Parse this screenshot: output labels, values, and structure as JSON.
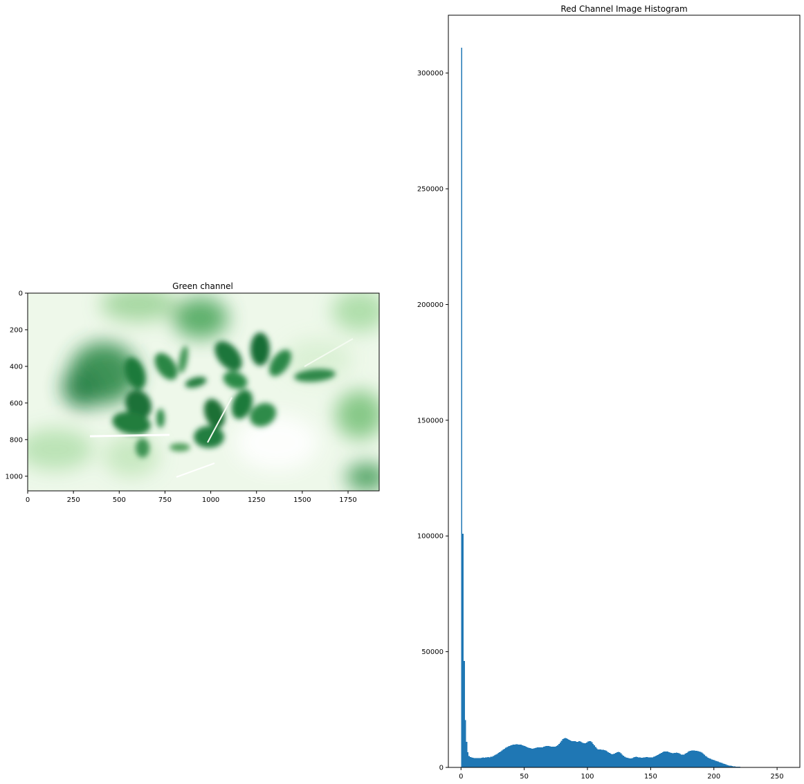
{
  "figure": {
    "image_panel": {
      "title": "Green channel",
      "colormap": "Greens",
      "x_ticks": [
        "0",
        "250",
        "500",
        "750",
        "1000",
        "1250",
        "1500",
        "1750"
      ],
      "y_ticks": [
        "0",
        "200",
        "400",
        "600",
        "800",
        "1000"
      ],
      "xlim": [
        0,
        1920
      ],
      "ylim": [
        1080,
        0
      ]
    }
  },
  "chart_data": {
    "type": "bar",
    "title": "Red Channel Image Histogram",
    "xlabel": "",
    "ylabel": "",
    "bar_color": "#1f77b4",
    "xlim": [
      -10,
      268
    ],
    "ylim": [
      0,
      325000
    ],
    "x_ticks": [
      "0",
      "50",
      "100",
      "150",
      "200",
      "250"
    ],
    "y_ticks": [
      "0",
      "50000",
      "100000",
      "150000",
      "200000",
      "250000",
      "300000"
    ],
    "bins": {
      "start": 0,
      "width": 1,
      "values": [
        311000,
        101000,
        46000,
        20500,
        11000,
        6500,
        5000,
        4500,
        4300,
        4200,
        4100,
        4000,
        4000,
        4100,
        4000,
        4100,
        4200,
        4300,
        4200,
        4400,
        4300,
        4500,
        4400,
        4600,
        4700,
        4900,
        5200,
        5500,
        5800,
        6200,
        6500,
        6900,
        7300,
        7700,
        8100,
        8500,
        8800,
        9100,
        9300,
        9500,
        9700,
        9800,
        9900,
        10000,
        10000,
        9900,
        9900,
        9800,
        9600,
        9400,
        9200,
        9000,
        8700,
        8500,
        8300,
        8200,
        8100,
        8200,
        8300,
        8500,
        8600,
        8700,
        8700,
        8600,
        8700,
        8900,
        9100,
        9200,
        9200,
        9200,
        9100,
        9000,
        8900,
        8900,
        9000,
        9200,
        9500,
        10100,
        10800,
        11500,
        12200,
        12600,
        12700,
        12500,
        12200,
        11900,
        11600,
        11400,
        11300,
        11400,
        11300,
        11000,
        11100,
        11300,
        11200,
        10900,
        10600,
        10400,
        10500,
        10800,
        11200,
        11400,
        11300,
        10900,
        10200,
        9500,
        8800,
        8200,
        7800,
        7700,
        7700,
        7600,
        7600,
        7500,
        7300,
        7000,
        6600,
        6200,
        5900,
        5700,
        5800,
        6000,
        6300,
        6600,
        6700,
        6500,
        6100,
        5600,
        5100,
        4700,
        4400,
        4200,
        4000,
        3900,
        3900,
        4100,
        4300,
        4500,
        4600,
        4500,
        4400,
        4300,
        4200,
        4200,
        4300,
        4400,
        4500,
        4500,
        4400,
        4300,
        4300,
        4400,
        4600,
        4800,
        5100,
        5400,
        5700,
        6000,
        6300,
        6600,
        6800,
        6900,
        6900,
        6800,
        6600,
        6400,
        6200,
        6100,
        6200,
        6300,
        6400,
        6300,
        6100,
        5800,
        5600,
        5500,
        5600,
        5900,
        6300,
        6700,
        7000,
        7200,
        7300,
        7300,
        7300,
        7200,
        7100,
        7000,
        6900,
        6700,
        6400,
        6000,
        5500,
        5000,
        4600,
        4200,
        3900,
        3700,
        3500,
        3300,
        3100,
        2900,
        2700,
        2500,
        2300,
        2100,
        1900,
        1700,
        1500,
        1300,
        1100,
        950,
        800,
        680,
        580,
        490,
        420,
        360,
        310,
        270,
        230,
        200,
        170,
        150,
        130,
        110,
        90,
        75,
        60,
        50,
        40,
        30,
        20,
        15,
        10,
        5
      ]
    }
  }
}
